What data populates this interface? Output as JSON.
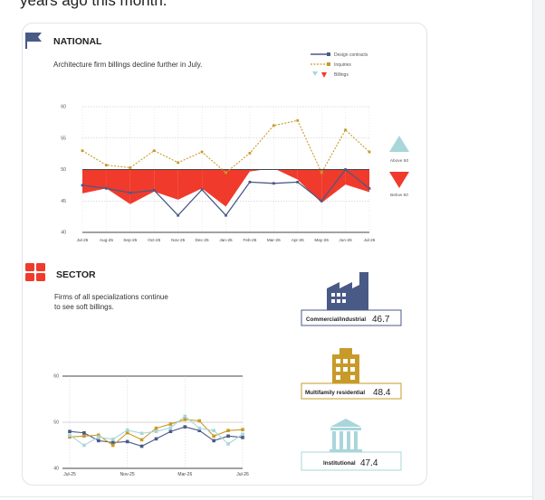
{
  "page": {
    "top_text": "years ago this month."
  },
  "national": {
    "heading": "NATIONAL",
    "subtitle": "Architecture firm billings decline further in July.",
    "legend": {
      "design_contracts": "Design contracts",
      "inquiries": "Inquiries",
      "billings": "Billings"
    },
    "above_label": "Above 50",
    "below_label": "Below 50"
  },
  "sector": {
    "heading": "SECTOR",
    "subtitle_line1": "Firms of all specializations continue",
    "subtitle_line2": "to see soft billings.",
    "items": [
      {
        "label": "Commercial/industrial",
        "value": "46.7"
      },
      {
        "label": "Multifamily residential",
        "value": "48.4"
      },
      {
        "label": "Institutional",
        "value": "47.4"
      }
    ]
  },
  "colors": {
    "navy": "#4a5a86",
    "gold": "#c89a2a",
    "red": "#f03a2c",
    "teal": "#a8d6da",
    "grid": "#bbbbbb",
    "axis": "#444444"
  },
  "chart_data": [
    {
      "type": "line",
      "title": "NATIONAL",
      "x": [
        "Jul-25",
        "Aug-25",
        "Sep-25",
        "Oct-25",
        "Nov-25",
        "Dec-25",
        "Jan-26",
        "Feb-26",
        "Mar-26",
        "Apr-26",
        "May-26",
        "Jun-26",
        "Jul-26"
      ],
      "ylim": [
        40,
        60
      ],
      "yticks": [
        40,
        45,
        50,
        55,
        60
      ],
      "series": [
        {
          "name": "Design contracts",
          "values": [
            47.5,
            47.0,
            46.3,
            46.7,
            42.7,
            46.8,
            42.7,
            48.0,
            47.8,
            48.0,
            45.0,
            50.0,
            47.0
          ]
        },
        {
          "name": "Inquiries",
          "values": [
            53.0,
            50.7,
            50.3,
            53.0,
            51.1,
            52.8,
            49.5,
            52.6,
            57.0,
            57.8,
            49.5,
            56.3,
            52.8
          ]
        },
        {
          "name": "Billings",
          "values": [
            46.2,
            47.0,
            44.5,
            46.5,
            45.2,
            47.0,
            44.1,
            49.7,
            50.2,
            48.4,
            44.7,
            47.6,
            46.4
          ]
        }
      ]
    },
    {
      "type": "line",
      "title": "SECTOR",
      "x": [
        "Jul-25",
        "Aug-25",
        "Sep-25",
        "Oct-25",
        "Nov-25",
        "Dec-25",
        "Jan-26",
        "Feb-26",
        "Mar-26",
        "Apr-26",
        "May-26",
        "Jun-26",
        "Jul-26"
      ],
      "xticks_shown": [
        "Jul-25",
        "Nov-25",
        "Mar-26",
        "Jul-26"
      ],
      "ylim": [
        40,
        60
      ],
      "yticks": [
        40,
        50,
        60
      ],
      "series": [
        {
          "name": "Commercial/industrial",
          "values": [
            48.0,
            47.7,
            46.0,
            45.6,
            45.8,
            44.8,
            46.4,
            48.0,
            49.0,
            48.2,
            46.0,
            47.0,
            46.7
          ]
        },
        {
          "name": "Multifamily residential",
          "values": [
            46.8,
            47.0,
            47.2,
            45.0,
            47.7,
            46.2,
            48.7,
            49.6,
            50.6,
            50.3,
            47.0,
            48.2,
            48.4
          ]
        },
        {
          "name": "Institutional",
          "values": [
            47.2,
            45.0,
            46.8,
            46.3,
            48.3,
            47.6,
            48.0,
            48.8,
            51.3,
            48.7,
            48.2,
            45.3,
            47.4
          ]
        }
      ]
    }
  ]
}
